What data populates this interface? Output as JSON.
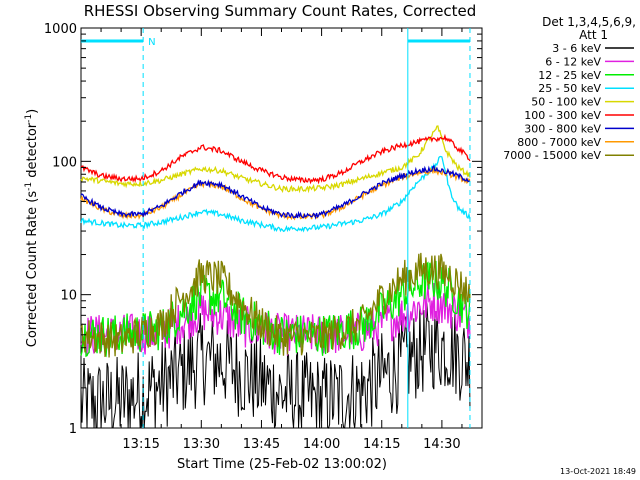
{
  "chart_data": {
    "type": "line",
    "title": "RHESSI Observing Summary Count Rates, Corrected",
    "xlabel": "Start Time (25-Feb-02 13:00:02)",
    "ylabel_main": "Corrected Count Rate (s",
    "ylabel_sup1": "-1",
    "ylabel_mid": " detector",
    "ylabel_sup2": "-1",
    "ylabel_end": ")",
    "yscale": "log",
    "ylim": [
      1,
      1000
    ],
    "xlim_minutes": [
      0,
      100
    ],
    "x_ticks": [
      {
        "label": "13:15",
        "minute": 15
      },
      {
        "label": "13:30",
        "minute": 30
      },
      {
        "label": "13:45",
        "minute": 45
      },
      {
        "label": "14:00",
        "minute": 60
      },
      {
        "label": "14:15",
        "minute": 75
      },
      {
        "label": "14:30",
        "minute": 90
      }
    ],
    "y_ticks": [
      {
        "label": "1",
        "value": 1
      },
      {
        "label": "10",
        "value": 10
      },
      {
        "label": "100",
        "value": 100
      },
      {
        "label": "1000",
        "value": 1000
      }
    ],
    "legend_header": [
      "Det 1,3,4,5,6,9,",
      "Att 1"
    ],
    "annotation_letter": "N",
    "footer_date": "13-Oct-2021 18:49",
    "night_bars": [
      [
        0,
        15.5
      ],
      [
        81.5,
        97
      ]
    ],
    "saa_lines": [
      15.5,
      81.5,
      97
    ],
    "series": [
      {
        "name": "3 - 6 keV",
        "color": "#000000",
        "points": [
          [
            0,
            1.5
          ],
          [
            10,
            1.6
          ],
          [
            20,
            2.1
          ],
          [
            25,
            2.6
          ],
          [
            30,
            3.3
          ],
          [
            35,
            3.2
          ],
          [
            40,
            2.6
          ],
          [
            50,
            1.8
          ],
          [
            60,
            1.6
          ],
          [
            70,
            1.9
          ],
          [
            75,
            2.4
          ],
          [
            80,
            3.0
          ],
          [
            85,
            3.8
          ],
          [
            88,
            4.2
          ],
          [
            92,
            4.0
          ],
          [
            97,
            3.1
          ]
        ]
      },
      {
        "name": "6 - 12 keV",
        "color": "#e020e0",
        "points": [
          [
            0,
            5
          ],
          [
            10,
            5
          ],
          [
            20,
            5.2
          ],
          [
            25,
            6.2
          ],
          [
            30,
            7.5
          ],
          [
            35,
            7.0
          ],
          [
            40,
            5.8
          ],
          [
            50,
            5
          ],
          [
            60,
            5
          ],
          [
            70,
            5.2
          ],
          [
            75,
            6
          ],
          [
            80,
            7
          ],
          [
            85,
            8.4
          ],
          [
            88,
            9
          ],
          [
            92,
            8
          ],
          [
            97,
            6.5
          ]
        ]
      },
      {
        "name": "12 - 25 keV",
        "color": "#00ee00",
        "points": [
          [
            0,
            5
          ],
          [
            10,
            5
          ],
          [
            20,
            5.5
          ],
          [
            25,
            7.5
          ],
          [
            30,
            10
          ],
          [
            35,
            9.5
          ],
          [
            40,
            7
          ],
          [
            50,
            5
          ],
          [
            60,
            5
          ],
          [
            70,
            5.8
          ],
          [
            75,
            7.5
          ],
          [
            80,
            10
          ],
          [
            85,
            12.5
          ],
          [
            88,
            13
          ],
          [
            92,
            11
          ],
          [
            97,
            7.5
          ]
        ]
      },
      {
        "name": "25 - 50 keV",
        "color": "#00e0ff",
        "points": [
          [
            0,
            36
          ],
          [
            10,
            33
          ],
          [
            15,
            33
          ],
          [
            20,
            35
          ],
          [
            25,
            38
          ],
          [
            30,
            42
          ],
          [
            35,
            40
          ],
          [
            40,
            36
          ],
          [
            50,
            31
          ],
          [
            60,
            32
          ],
          [
            70,
            36
          ],
          [
            75,
            40
          ],
          [
            80,
            50
          ],
          [
            83,
            65
          ],
          [
            85,
            75
          ],
          [
            88,
            90
          ],
          [
            90,
            110
          ],
          [
            92,
            60
          ],
          [
            94,
            45
          ],
          [
            97,
            38
          ]
        ]
      },
      {
        "name": "50 - 100 keV",
        "color": "#d8d800",
        "points": [
          [
            0,
            75
          ],
          [
            10,
            68
          ],
          [
            15,
            68
          ],
          [
            20,
            72
          ],
          [
            25,
            80
          ],
          [
            30,
            88
          ],
          [
            35,
            85
          ],
          [
            40,
            75
          ],
          [
            45,
            68
          ],
          [
            50,
            62
          ],
          [
            55,
            62
          ],
          [
            60,
            63
          ],
          [
            65,
            67
          ],
          [
            70,
            74
          ],
          [
            75,
            82
          ],
          [
            80,
            90
          ],
          [
            84,
            110
          ],
          [
            87,
            150
          ],
          [
            89,
            180
          ],
          [
            91,
            120
          ],
          [
            94,
            90
          ],
          [
            97,
            78
          ]
        ]
      },
      {
        "name": "100 - 300 keV",
        "color": "#ff0000",
        "points": [
          [
            0,
            90
          ],
          [
            5,
            78
          ],
          [
            10,
            74
          ],
          [
            15,
            74
          ],
          [
            20,
            85
          ],
          [
            25,
            108
          ],
          [
            30,
            128
          ],
          [
            35,
            120
          ],
          [
            40,
            100
          ],
          [
            45,
            85
          ],
          [
            50,
            76
          ],
          [
            55,
            72
          ],
          [
            60,
            73
          ],
          [
            65,
            82
          ],
          [
            70,
            100
          ],
          [
            75,
            118
          ],
          [
            80,
            132
          ],
          [
            84,
            140
          ],
          [
            88,
            148
          ],
          [
            91,
            150
          ],
          [
            94,
            125
          ],
          [
            97,
            105
          ]
        ]
      },
      {
        "name": "300 - 800 keV",
        "color": "#0000cc",
        "points": [
          [
            0,
            55
          ],
          [
            5,
            45
          ],
          [
            10,
            40
          ],
          [
            15,
            40
          ],
          [
            20,
            46
          ],
          [
            25,
            58
          ],
          [
            30,
            70
          ],
          [
            35,
            67
          ],
          [
            40,
            55
          ],
          [
            45,
            45
          ],
          [
            50,
            40
          ],
          [
            55,
            39
          ],
          [
            60,
            40
          ],
          [
            65,
            46
          ],
          [
            70,
            56
          ],
          [
            75,
            68
          ],
          [
            80,
            78
          ],
          [
            84,
            85
          ],
          [
            88,
            88
          ],
          [
            92,
            82
          ],
          [
            97,
            72
          ]
        ]
      },
      {
        "name": "800 - 7000 keV",
        "color": "#ff9900",
        "points": [
          [
            0,
            53
          ],
          [
            5,
            44
          ],
          [
            10,
            39
          ],
          [
            15,
            39
          ],
          [
            20,
            45
          ],
          [
            25,
            56
          ],
          [
            30,
            68
          ],
          [
            35,
            65
          ],
          [
            40,
            53
          ],
          [
            45,
            44
          ],
          [
            50,
            39
          ],
          [
            55,
            38
          ],
          [
            60,
            39
          ],
          [
            65,
            45
          ],
          [
            70,
            55
          ],
          [
            75,
            66
          ],
          [
            80,
            76
          ],
          [
            84,
            82
          ],
          [
            88,
            85
          ],
          [
            92,
            80
          ],
          [
            97,
            70
          ]
        ]
      },
      {
        "name": "7000 - 15000 keV",
        "color": "#808000",
        "points": [
          [
            0,
            5
          ],
          [
            10,
            4.5
          ],
          [
            20,
            6
          ],
          [
            25,
            9.5
          ],
          [
            30,
            14
          ],
          [
            35,
            13
          ],
          [
            40,
            8.5
          ],
          [
            45,
            6
          ],
          [
            50,
            4.8
          ],
          [
            60,
            4.8
          ],
          [
            70,
            6
          ],
          [
            75,
            9.5
          ],
          [
            80,
            13
          ],
          [
            85,
            15.5
          ],
          [
            88,
            15.5
          ],
          [
            92,
            14
          ],
          [
            97,
            10
          ]
        ]
      }
    ]
  }
}
